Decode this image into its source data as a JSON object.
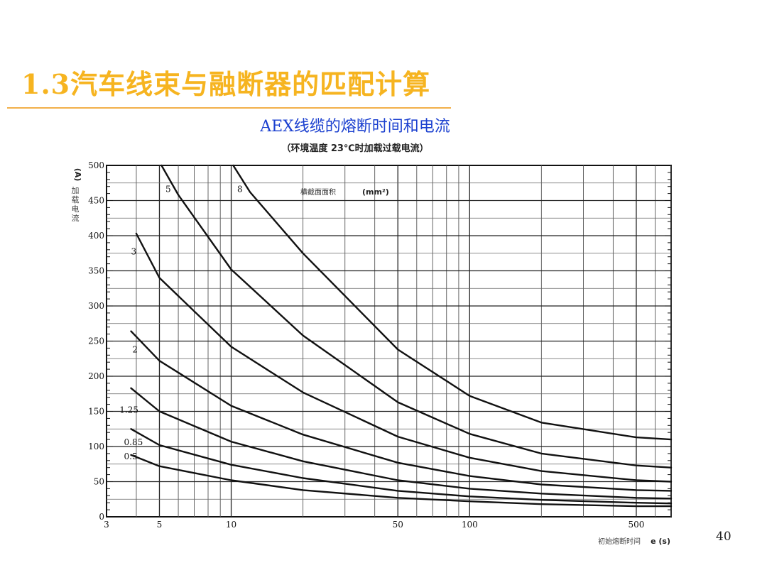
{
  "slide": {
    "title": "1.3汽车线束与融断器的匹配计算",
    "page_number": "40"
  },
  "chart_data": {
    "type": "line",
    "title": "AEX线缆的熔断时间和电流",
    "subtitle": "（环境温度 23℃时加载过载电流）",
    "ylabel": "加载电流",
    "ylabel_unit": "(A)",
    "xlabel": "初始熔断时间",
    "xlabel_unit": "e (s)",
    "legend_title": "横截面面积",
    "legend_unit": "(mm²)",
    "x_scale": "log",
    "xlim": [
      3,
      700
    ],
    "ylim": [
      0,
      500
    ],
    "x_ticks": [
      3,
      5,
      10,
      50,
      100,
      500
    ],
    "y_ticks": [
      0,
      50,
      100,
      150,
      200,
      250,
      300,
      350,
      400,
      450,
      500
    ],
    "grid": true,
    "series": [
      {
        "name": "0.5",
        "x": [
          3.8,
          5,
          10,
          20,
          50,
          100,
          200,
          500,
          700
        ],
        "y": [
          88,
          72,
          52,
          38,
          27,
          22,
          18,
          15,
          15
        ]
      },
      {
        "name": "0.85",
        "x": [
          3.8,
          5,
          10,
          20,
          50,
          100,
          200,
          500,
          700
        ],
        "y": [
          125,
          102,
          74,
          55,
          37,
          29,
          24,
          20,
          19
        ]
      },
      {
        "name": "1.25",
        "x": [
          3.8,
          5,
          10,
          20,
          50,
          100,
          200,
          500,
          700
        ],
        "y": [
          183,
          150,
          107,
          79,
          52,
          40,
          33,
          27,
          26
        ]
      },
      {
        "name": "2",
        "x": [
          3.8,
          5,
          10,
          20,
          50,
          100,
          200,
          500,
          700
        ],
        "y": [
          264,
          222,
          158,
          117,
          77,
          58,
          46,
          38,
          37
        ]
      },
      {
        "name": "3",
        "x": [
          4.0,
          5,
          10,
          20,
          50,
          100,
          200,
          500,
          700
        ],
        "y": [
          403,
          340,
          242,
          177,
          114,
          84,
          65,
          52,
          50
        ]
      },
      {
        "name": "5",
        "x": [
          5.1,
          6,
          10,
          20,
          50,
          100,
          200,
          500,
          700
        ],
        "y": [
          500,
          458,
          352,
          258,
          163,
          118,
          90,
          73,
          70
        ]
      },
      {
        "name": "8",
        "x": [
          10.2,
          12,
          20,
          50,
          100,
          200,
          500,
          700
        ],
        "y": [
          500,
          462,
          375,
          238,
          172,
          134,
          113,
          110
        ]
      }
    ]
  }
}
